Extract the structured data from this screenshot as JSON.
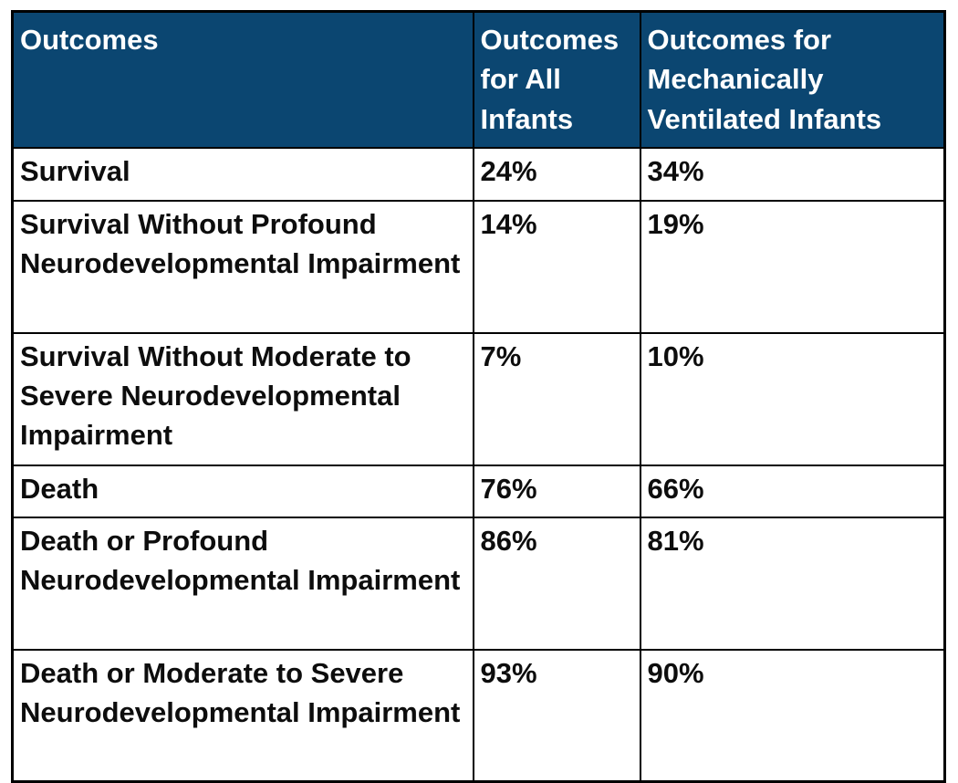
{
  "colors": {
    "header_background": "#0b4671",
    "header_text": "#ffffff",
    "body_text": "#0d0d0d",
    "border": "#000000"
  },
  "chart_data": {
    "type": "table",
    "columns": [
      "Outcomes",
      "Outcomes for All Infants",
      "Outcomes for Mechanically Ventilated Infants"
    ],
    "rows": [
      [
        "Survival",
        "24%",
        "34%"
      ],
      [
        "Survival Without Profound Neurodevelopmental Impairment",
        "14%",
        "19%"
      ],
      [
        "Survival Without Moderate to Severe Neurodevelopmental Impairment",
        "7%",
        "10%"
      ],
      [
        "Death",
        "76%",
        "66%"
      ],
      [
        "Death or Profound Neurodevelopmental Impairment",
        "86%",
        "81%"
      ],
      [
        "Death or Moderate to Severe Neurodevelopmental Impairment",
        "93%",
        "90%"
      ]
    ]
  }
}
